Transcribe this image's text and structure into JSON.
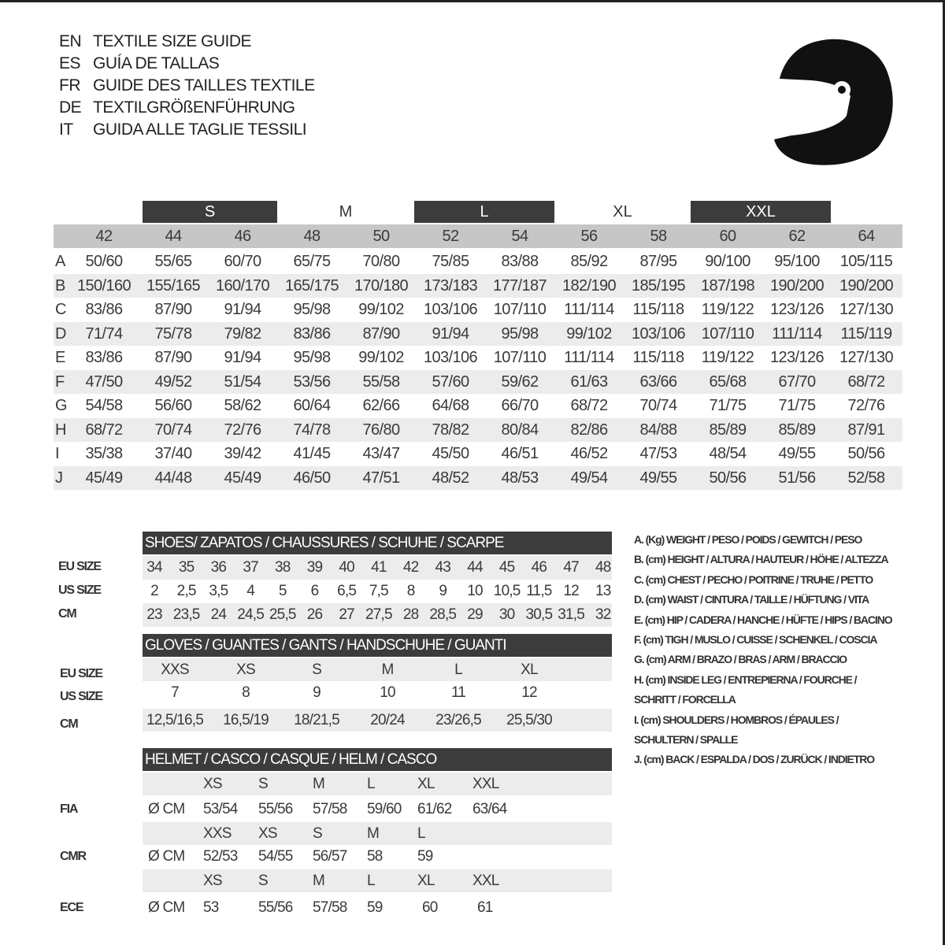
{
  "colors": {
    "dark_band": "#3c3c3c",
    "header_gray": "#c6c6c6",
    "row_gray": "#ececec",
    "text": "#3a3a3a"
  },
  "titles": [
    {
      "code": "EN",
      "text": "TEXTILE SIZE GUIDE"
    },
    {
      "code": "ES",
      "text": "GUÍA DE TALLAS"
    },
    {
      "code": "FR",
      "text": "GUIDE DES TAILLES TEXTILE"
    },
    {
      "code": "DE",
      "text": "TEXTILGRÖßENFÜHRUNG"
    },
    {
      "code": "IT",
      "text": "GUIDA ALLE TAGLIE TESSILI"
    }
  ],
  "logo_icon": "helmet-icon",
  "textile": {
    "bands": [
      "S",
      "M",
      "L",
      "XL",
      "XXL"
    ],
    "sizes": [
      "42",
      "44",
      "46",
      "48",
      "50",
      "52",
      "54",
      "56",
      "58",
      "60",
      "62",
      "64"
    ],
    "rows": [
      {
        "label": "A",
        "values": [
          "50/60",
          "55/65",
          "60/70",
          "65/75",
          "70/80",
          "75/85",
          "83/88",
          "85/92",
          "87/95",
          "90/100",
          "95/100",
          "105/115"
        ]
      },
      {
        "label": "B",
        "values": [
          "150/160",
          "155/165",
          "160/170",
          "165/175",
          "170/180",
          "173/183",
          "177/187",
          "182/190",
          "185/195",
          "187/198",
          "190/200",
          "190/200"
        ]
      },
      {
        "label": "C",
        "values": [
          "83/86",
          "87/90",
          "91/94",
          "95/98",
          "99/102",
          "103/106",
          "107/110",
          "111/114",
          "115/118",
          "119/122",
          "123/126",
          "127/130"
        ]
      },
      {
        "label": "D",
        "values": [
          "71/74",
          "75/78",
          "79/82",
          "83/86",
          "87/90",
          "91/94",
          "95/98",
          "99/102",
          "103/106",
          "107/110",
          "111/114",
          "115/119"
        ]
      },
      {
        "label": "E",
        "values": [
          "83/86",
          "87/90",
          "91/94",
          "95/98",
          "99/102",
          "103/106",
          "107/110",
          "111/114",
          "115/118",
          "119/122",
          "123/126",
          "127/130"
        ]
      },
      {
        "label": "F",
        "values": [
          "47/50",
          "49/52",
          "51/54",
          "53/56",
          "55/58",
          "57/60",
          "59/62",
          "61/63",
          "63/66",
          "65/68",
          "67/70",
          "68/72"
        ]
      },
      {
        "label": "G",
        "values": [
          "54/58",
          "56/60",
          "58/62",
          "60/64",
          "62/66",
          "64/68",
          "66/70",
          "68/72",
          "70/74",
          "71/75",
          "71/75",
          "72/76"
        ]
      },
      {
        "label": "H",
        "values": [
          "68/72",
          "70/74",
          "72/76",
          "74/78",
          "76/80",
          "78/82",
          "80/84",
          "82/86",
          "84/88",
          "85/89",
          "85/89",
          "87/91"
        ]
      },
      {
        "label": "I",
        "values": [
          "35/38",
          "37/40",
          "39/42",
          "41/45",
          "43/47",
          "45/50",
          "46/51",
          "46/52",
          "47/53",
          "48/54",
          "49/55",
          "50/56"
        ]
      },
      {
        "label": "J",
        "values": [
          "45/49",
          "44/48",
          "45/49",
          "46/50",
          "47/51",
          "48/52",
          "48/53",
          "49/54",
          "49/55",
          "50/56",
          "51/56",
          "52/58"
        ]
      }
    ]
  },
  "shoes": {
    "title": "SHOES/ ZAPATOS / CHAUSSURES / SCHUHE / SCARPE",
    "rows": [
      {
        "label": "EU SIZE",
        "values": [
          "34",
          "35",
          "36",
          "37",
          "38",
          "39",
          "40",
          "41",
          "42",
          "43",
          "44",
          "45",
          "46",
          "47",
          "48"
        ]
      },
      {
        "label": "US SIZE",
        "values": [
          "2",
          "2,5",
          "3,5",
          "4",
          "5",
          "6",
          "6,5",
          "7,5",
          "8",
          "9",
          "10",
          "10,5",
          "11,5",
          "12",
          "13"
        ]
      },
      {
        "label": "CM",
        "values": [
          "23",
          "23,5",
          "24",
          "24,5",
          "25,5",
          "26",
          "27",
          "27,5",
          "28",
          "28,5",
          "29",
          "30",
          "30,5",
          "31,5",
          "32"
        ]
      }
    ]
  },
  "gloves": {
    "title": "GLOVES / GUANTES / GANTS / HANDSCHUHE / GUANTI",
    "rows": [
      {
        "label": "EU SIZE",
        "values": [
          "XXS",
          "XS",
          "S",
          "M",
          "L",
          "XL"
        ]
      },
      {
        "label": "US SIZE",
        "values": [
          "7",
          "8",
          "9",
          "10",
          "11",
          "12"
        ]
      },
      {
        "label": "CM",
        "values": [
          "12,5/16,5",
          "16,5/19",
          "18/21,5",
          "20/24",
          "23/26,5",
          "25,5/30"
        ]
      }
    ]
  },
  "helmet": {
    "title": "HELMET / CASCO / CASQUE / HELM / CASCO",
    "unit": "Ø CM",
    "standards": [
      {
        "label": "FIA",
        "sizes": [
          "XS",
          "S",
          "M",
          "L",
          "XL",
          "XXL"
        ],
        "values": [
          "53/54",
          "55/56",
          "57/58",
          "59/60",
          "61/62",
          "63/64"
        ]
      },
      {
        "label": "CMR",
        "sizes": [
          "XXS",
          "XS",
          "S",
          "M",
          "L"
        ],
        "values": [
          "52/53",
          "54/55",
          "56/57",
          "58",
          "59"
        ]
      },
      {
        "label": "ECE",
        "sizes": [
          "XS",
          "S",
          "M",
          "L",
          "XL",
          "XXL"
        ],
        "values": [
          "53",
          "55/56",
          "57/58",
          "59",
          "60",
          "61"
        ]
      }
    ]
  },
  "legend": [
    "A. (Kg) WEIGHT / PESO / POIDS / GEWITCH / PESO",
    "B. (cm) HEIGHT / ALTURA / HAUTEUR / HÖHE / ALTEZZA",
    "C. (cm) CHEST / PECHO / POITRINE / TRUHE / PETTO",
    "D. (cm) WAIST / CINTURA / TAILLE / HÜFTUNG / VITA",
    "E. (cm) HIP / CADERA / HANCHE / HÜFTE / HIPS /  BACINO",
    "F.  (cm) TIGH / MUSLO / CUISSE / SCHENKEL / COSCIA",
    "G. (cm) ARM  / BRAZO / BRAS / ARM / BRACCIO",
    "H. (cm) INSIDE LEG / ENTREPIERNA / FOURCHE /",
    "SCHRITT / FORCELLA",
    "I.  (cm) SHOULDERS / HOMBROS / ÉPAULES /",
    "SCHULTERN / SPALLE",
    "J. (cm) BACK / ESPALDA / DOS / ZURÜCK / INDIETRO"
  ]
}
